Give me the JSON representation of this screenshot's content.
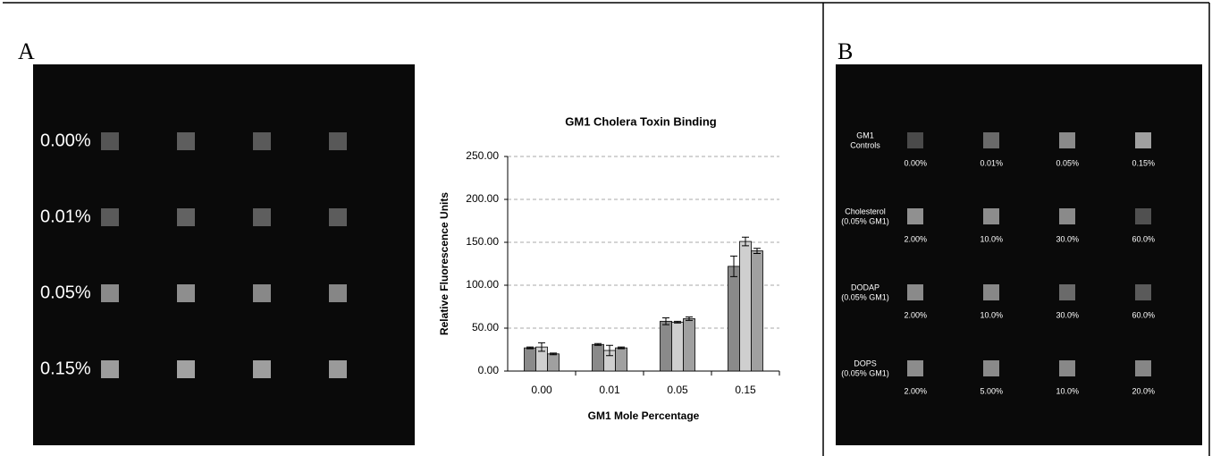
{
  "panel_a": {
    "label": "A",
    "rows": [
      "0.00%",
      "0.01%",
      "0.05%",
      "0.15%"
    ]
  },
  "chart_data": {
    "type": "bar",
    "title": "GM1 Cholera Toxin Binding",
    "x_label": "GM1 Mole Percentage",
    "y_label": "Relative Fluorescence Units",
    "categories": [
      "0.00",
      "0.01",
      "0.05",
      "0.15"
    ],
    "series": [
      {
        "color": "#8a8a8a",
        "values": [
          27,
          31,
          58,
          122
        ],
        "errors": [
          1,
          1,
          4,
          12
        ]
      },
      {
        "color": "#cfcfcf",
        "values": [
          28,
          24,
          57,
          151
        ],
        "errors": [
          5,
          6,
          1,
          5
        ]
      },
      {
        "color": "#a0a0a0",
        "values": [
          20,
          27,
          61,
          140
        ],
        "errors": [
          1,
          1,
          2,
          3
        ]
      }
    ],
    "ylim": [
      0,
      250
    ],
    "yticks": [
      {
        "value": 0,
        "label": "0.00"
      },
      {
        "value": 50,
        "label": "50.00"
      },
      {
        "value": 100,
        "label": "100.00"
      },
      {
        "value": 150,
        "label": "150.00"
      },
      {
        "value": 200,
        "label": "200.00"
      },
      {
        "value": 250,
        "label": "250.00"
      }
    ],
    "grid": true
  },
  "panel_b": {
    "label": "B",
    "rows": [
      {
        "label_lines": [
          "GM1",
          "Controls"
        ],
        "concentrations": [
          "0.00%",
          "0.01%",
          "0.05%",
          "0.15%"
        ]
      },
      {
        "label_lines": [
          "Cholesterol",
          "(0.05% GM1)"
        ],
        "concentrations": [
          "2.00%",
          "10.0%",
          "30.0%",
          "60.0%"
        ]
      },
      {
        "label_lines": [
          "DODAP",
          "(0.05% GM1)"
        ],
        "concentrations": [
          "2.00%",
          "10.0%",
          "30.0%",
          "60.0%"
        ]
      },
      {
        "label_lines": [
          "DOPS",
          "(0.05% GM1)"
        ],
        "concentrations": [
          "2.00%",
          "5.00%",
          "10.0%",
          "20.0%"
        ]
      }
    ]
  }
}
